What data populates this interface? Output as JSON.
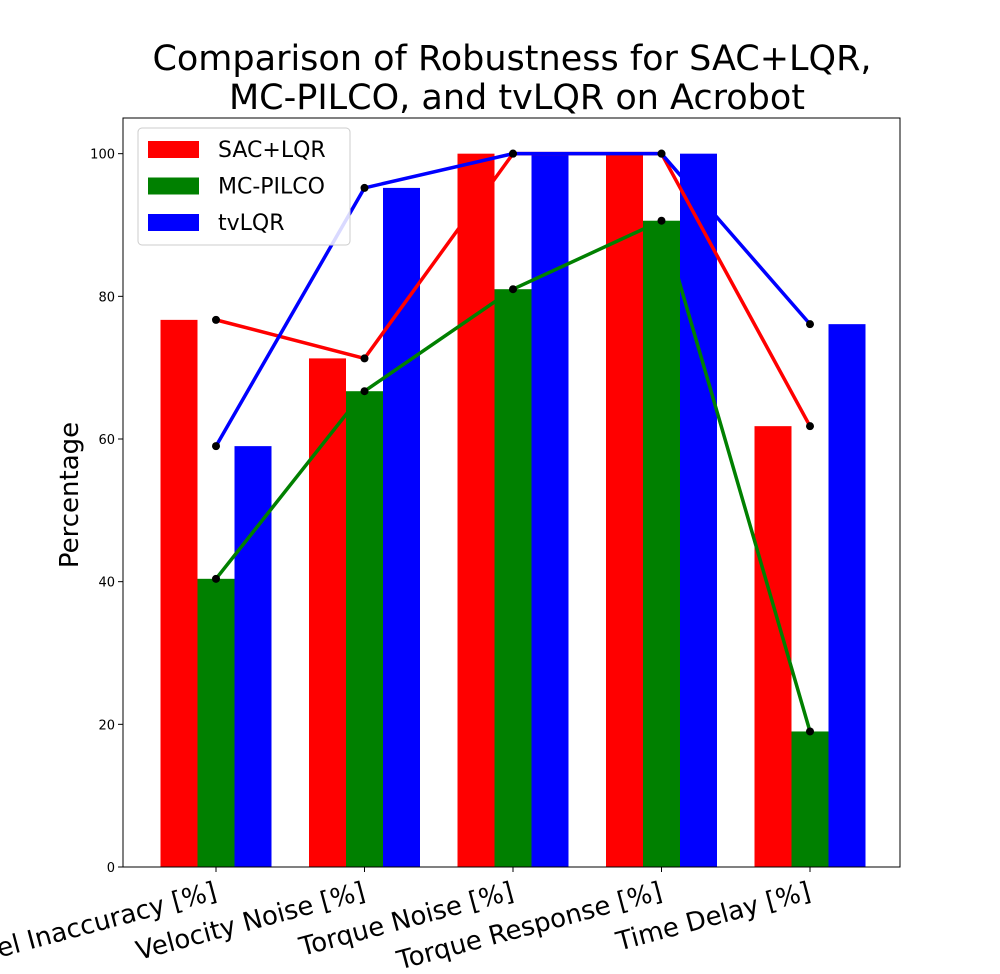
{
  "chart_data": {
    "type": "bar",
    "title_line1": "Comparison of Robustness for SAC+LQR,",
    "title_line2": "MC-PILCO, and tvLQR on Acrobot",
    "xlabel": "",
    "ylabel": "Percentage",
    "ylim": [
      0,
      105
    ],
    "yticks": [
      0,
      20,
      40,
      60,
      80,
      100
    ],
    "categories": [
      "Model Inaccuracy [%]",
      "Velocity Noise [%]",
      "Torque Noise [%]",
      "Torque Response [%]",
      "Time Delay [%]"
    ],
    "series": [
      {
        "name": "SAC+LQR",
        "color": "#ff0000",
        "values": [
          76.7,
          71.3,
          100,
          100,
          61.8
        ]
      },
      {
        "name": "MC-PILCO",
        "color": "#008000",
        "values": [
          40.4,
          66.7,
          81.0,
          90.6,
          19.0
        ]
      },
      {
        "name": "tvLQR",
        "color": "#0000ff",
        "values": [
          59.0,
          95.2,
          100,
          100,
          76.1
        ]
      }
    ],
    "overlay_lines": "each series is also drawn as a line with black point markers at the category centers",
    "legend_position": "upper-left",
    "grid": false
  }
}
